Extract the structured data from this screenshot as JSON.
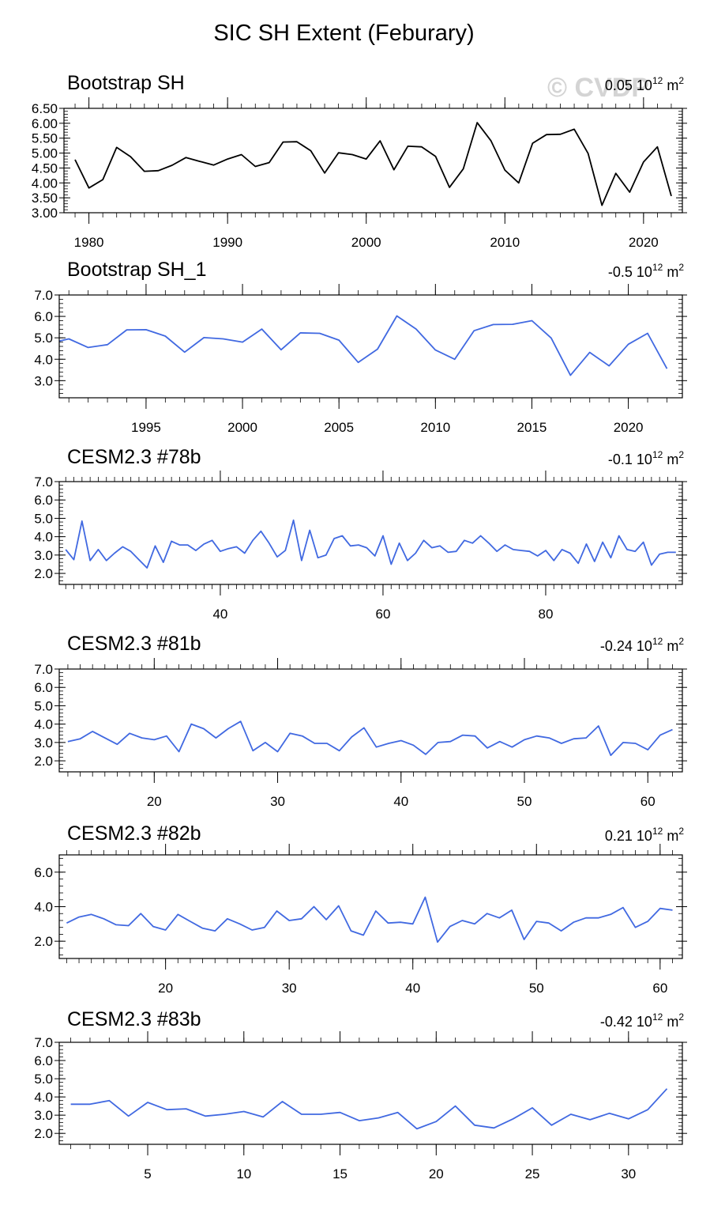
{
  "page": {
    "title": "SIC SH Extent (Feburary)",
    "watermark": "© CVDP",
    "line_colors": {
      "observed": "#000000",
      "model": "#4169e1"
    }
  },
  "chart_data": [
    {
      "type": "line",
      "title": "Bootstrap SH",
      "trend_value": "0.05",
      "trend_base": "10",
      "trend_exp": "12",
      "trend_unit": "m",
      "trend_unit_exp": "2",
      "color": "#000000",
      "xlim": [
        1978.2,
        2022.8
      ],
      "ylim": [
        3.0,
        6.5
      ],
      "yticks": [
        3.0,
        3.5,
        4.0,
        4.5,
        5.0,
        5.5,
        6.0,
        6.5
      ],
      "ytick_labels": [
        "3.00",
        "3.50",
        "4.00",
        "4.50",
        "5.00",
        "5.50",
        "6.00",
        "6.50"
      ],
      "xticks": [
        1980,
        1990,
        2000,
        2010,
        2020
      ],
      "xtick_labels": [
        "1980",
        "1990",
        "2000",
        "2010",
        "2020"
      ],
      "x": [
        1979,
        1980,
        1981,
        1982,
        1983,
        1984,
        1985,
        1986,
        1987,
        1988,
        1989,
        1990,
        1991,
        1992,
        1993,
        1994,
        1995,
        1996,
        1997,
        1998,
        1999,
        2000,
        2001,
        2002,
        2003,
        2004,
        2005,
        2006,
        2007,
        2008,
        2009,
        2010,
        2011,
        2012,
        2013,
        2014,
        2015,
        2016,
        2017,
        2018,
        2019,
        2020,
        2021,
        2022
      ],
      "y": [
        4.78,
        3.83,
        4.11,
        5.19,
        4.88,
        4.39,
        4.41,
        4.59,
        4.85,
        4.72,
        4.6,
        4.8,
        4.95,
        4.55,
        4.68,
        5.37,
        5.38,
        5.08,
        4.33,
        5.01,
        4.95,
        4.8,
        5.41,
        4.44,
        5.23,
        5.21,
        4.89,
        3.85,
        4.47,
        6.02,
        5.41,
        4.43,
        4.0,
        5.33,
        5.62,
        5.63,
        5.8,
        4.99,
        3.25,
        4.32,
        3.69,
        4.7,
        5.21,
        3.56
      ]
    },
    {
      "type": "line",
      "title": "Bootstrap SH_1",
      "trend_value": "-0.5",
      "trend_base": "10",
      "trend_exp": "12",
      "trend_unit": "m",
      "trend_unit_exp": "2",
      "color": "#4169e1",
      "xlim": [
        1990.5,
        2022.8
      ],
      "ylim": [
        2.2,
        7.0
      ],
      "yticks": [
        3.0,
        4.0,
        5.0,
        6.0,
        7.0
      ],
      "ytick_labels": [
        "3.0",
        "4.0",
        "5.0",
        "6.0",
        "7.0"
      ],
      "xticks": [
        1995,
        2000,
        2005,
        2010,
        2015,
        2020
      ],
      "xtick_labels": [
        "1995",
        "2000",
        "2005",
        "2010",
        "2015",
        "2020"
      ],
      "x": [
        1990.5,
        1991,
        1992,
        1993,
        1994,
        1995,
        1996,
        1997,
        1998,
        1999,
        2000,
        2001,
        2002,
        2003,
        2004,
        2005,
        2006,
        2007,
        2008,
        2009,
        2010,
        2011,
        2012,
        2013,
        2014,
        2015,
        2016,
        2017,
        2018,
        2019,
        2020,
        2021,
        2022
      ],
      "y": [
        4.85,
        4.95,
        4.55,
        4.68,
        5.37,
        5.38,
        5.08,
        4.33,
        5.01,
        4.95,
        4.8,
        5.41,
        4.44,
        5.23,
        5.21,
        4.89,
        3.85,
        4.47,
        6.02,
        5.41,
        4.43,
        4.0,
        5.33,
        5.62,
        5.63,
        5.8,
        4.99,
        3.25,
        4.32,
        3.69,
        4.7,
        5.21,
        3.56
      ]
    },
    {
      "type": "line",
      "title": "CESM2.3 #78b",
      "trend_value": "-0.1",
      "trend_base": "10",
      "trend_exp": "12",
      "trend_unit": "m",
      "trend_unit_exp": "2",
      "color": "#4169e1",
      "xlim": [
        20.2,
        96.8
      ],
      "ylim": [
        1.4,
        7.0
      ],
      "yticks": [
        2.0,
        3.0,
        4.0,
        5.0,
        6.0,
        7.0
      ],
      "ytick_labels": [
        "2.0",
        "3.0",
        "4.0",
        "5.0",
        "6.0",
        "7.0"
      ],
      "xticks": [
        40,
        60,
        80
      ],
      "xtick_labels": [
        "40",
        "60",
        "80"
      ],
      "x": [
        21,
        22,
        23,
        24,
        25,
        26,
        27,
        28,
        29,
        30,
        31,
        32,
        33,
        34,
        35,
        36,
        37,
        38,
        39,
        40,
        41,
        42,
        43,
        44,
        45,
        46,
        47,
        48,
        49,
        50,
        51,
        52,
        53,
        54,
        55,
        56,
        57,
        58,
        59,
        60,
        61,
        62,
        63,
        64,
        65,
        66,
        67,
        68,
        69,
        70,
        71,
        72,
        73,
        74,
        75,
        76,
        77,
        78,
        79,
        80,
        81,
        82,
        83,
        84,
        85,
        86,
        87,
        88,
        89,
        90,
        91,
        92,
        93,
        94,
        95,
        96
      ],
      "y": [
        3.3,
        2.75,
        4.85,
        2.7,
        3.3,
        2.7,
        3.1,
        3.45,
        3.2,
        2.75,
        2.3,
        3.5,
        2.6,
        3.75,
        3.55,
        3.55,
        3.25,
        3.6,
        3.8,
        3.2,
        3.35,
        3.45,
        3.1,
        3.8,
        4.3,
        3.65,
        2.9,
        3.25,
        4.9,
        2.7,
        4.35,
        2.85,
        3.0,
        3.9,
        4.05,
        3.5,
        3.55,
        3.4,
        2.95,
        4.05,
        2.5,
        3.65,
        2.7,
        3.1,
        3.8,
        3.4,
        3.5,
        3.15,
        3.2,
        3.8,
        3.65,
        4.05,
        3.65,
        3.2,
        3.55,
        3.3,
        3.25,
        3.2,
        2.95,
        3.25,
        2.7,
        3.3,
        3.1,
        2.55,
        3.6,
        2.65,
        3.7,
        2.85,
        4.05,
        3.3,
        3.2,
        3.7,
        2.45,
        3.05,
        3.15,
        3.15
      ]
    },
    {
      "type": "line",
      "title": "CESM2.3 #81b",
      "trend_value": "-0.24",
      "trend_base": "10",
      "trend_exp": "12",
      "trend_unit": "m",
      "trend_unit_exp": "2",
      "color": "#4169e1",
      "xlim": [
        12.3,
        62.8
      ],
      "ylim": [
        1.4,
        7.0
      ],
      "yticks": [
        2.0,
        3.0,
        4.0,
        5.0,
        6.0,
        7.0
      ],
      "ytick_labels": [
        "2.0",
        "3.0",
        "4.0",
        "5.0",
        "6.0",
        "7.0"
      ],
      "xticks": [
        20,
        30,
        40,
        50,
        60
      ],
      "xtick_labels": [
        "20",
        "30",
        "40",
        "50",
        "60"
      ],
      "x": [
        13,
        14,
        15,
        16,
        17,
        18,
        19,
        20,
        21,
        22,
        23,
        24,
        25,
        26,
        27,
        28,
        29,
        30,
        31,
        32,
        33,
        34,
        35,
        36,
        37,
        38,
        39,
        40,
        41,
        42,
        43,
        44,
        45,
        46,
        47,
        48,
        49,
        50,
        51,
        52,
        53,
        54,
        55,
        56,
        57,
        58,
        59,
        60,
        61,
        62
      ],
      "y": [
        3.05,
        3.2,
        3.6,
        3.25,
        2.9,
        3.5,
        3.25,
        3.15,
        3.35,
        2.5,
        4.0,
        3.75,
        3.25,
        3.75,
        4.15,
        2.55,
        3.0,
        2.5,
        3.5,
        3.35,
        2.95,
        2.95,
        2.55,
        3.3,
        3.8,
        2.75,
        2.95,
        3.1,
        2.85,
        2.35,
        3.0,
        3.05,
        3.4,
        3.35,
        2.7,
        3.05,
        2.75,
        3.15,
        3.35,
        3.25,
        2.95,
        3.2,
        3.25,
        3.9,
        2.3,
        3.0,
        2.95,
        2.6,
        3.4,
        3.7
      ]
    },
    {
      "type": "line",
      "title": "CESM2.3 #82b",
      "trend_value": "0.21",
      "trend_base": "10",
      "trend_exp": "12",
      "trend_unit": "m",
      "trend_unit_exp": "2",
      "color": "#4169e1",
      "xlim": [
        11.4,
        61.8
      ],
      "ylim": [
        1.0,
        7.0
      ],
      "yticks": [
        2.0,
        4.0,
        6.0
      ],
      "ytick_labels": [
        "2.0",
        "4.0",
        "6.0"
      ],
      "xticks": [
        20,
        30,
        40,
        50,
        60
      ],
      "xtick_labels": [
        "20",
        "30",
        "40",
        "50",
        "60"
      ],
      "x": [
        12,
        13,
        14,
        15,
        16,
        17,
        18,
        19,
        20,
        21,
        22,
        23,
        24,
        25,
        26,
        27,
        28,
        29,
        30,
        31,
        32,
        33,
        34,
        35,
        36,
        37,
        38,
        39,
        40,
        41,
        42,
        43,
        44,
        45,
        46,
        47,
        48,
        49,
        50,
        51,
        52,
        53,
        54,
        55,
        56,
        57,
        58,
        59,
        60,
        61
      ],
      "y": [
        3.05,
        3.4,
        3.55,
        3.3,
        2.95,
        2.9,
        3.6,
        2.85,
        2.65,
        3.55,
        3.15,
        2.75,
        2.6,
        3.3,
        3.0,
        2.65,
        2.8,
        3.75,
        3.2,
        3.3,
        4.0,
        3.25,
        4.05,
        2.6,
        2.35,
        3.75,
        3.05,
        3.1,
        3.0,
        4.55,
        1.95,
        2.85,
        3.2,
        3.0,
        3.6,
        3.35,
        3.8,
        2.1,
        3.15,
        3.05,
        2.6,
        3.1,
        3.35,
        3.35,
        3.55,
        3.95,
        2.8,
        3.15,
        3.9,
        3.8
      ]
    },
    {
      "type": "line",
      "title": "CESM2.3 #83b",
      "trend_value": "-0.42",
      "trend_base": "10",
      "trend_exp": "12",
      "trend_unit": "m",
      "trend_unit_exp": "2",
      "color": "#4169e1",
      "xlim": [
        0.4,
        32.8
      ],
      "ylim": [
        1.4,
        7.0
      ],
      "yticks": [
        2.0,
        3.0,
        4.0,
        5.0,
        6.0,
        7.0
      ],
      "ytick_labels": [
        "2.0",
        "3.0",
        "4.0",
        "5.0",
        "6.0",
        "7.0"
      ],
      "xticks": [
        5,
        10,
        15,
        20,
        25,
        30
      ],
      "xtick_labels": [
        "5",
        "10",
        "15",
        "20",
        "25",
        "30"
      ],
      "x": [
        1,
        2,
        3,
        4,
        5,
        6,
        7,
        8,
        9,
        10,
        11,
        12,
        13,
        14,
        15,
        16,
        17,
        18,
        19,
        20,
        21,
        22,
        23,
        24,
        25,
        26,
        27,
        28,
        29,
        30,
        31,
        32
      ],
      "y": [
        3.6,
        3.6,
        3.8,
        2.95,
        3.7,
        3.3,
        3.35,
        2.95,
        3.05,
        3.2,
        2.9,
        3.75,
        3.05,
        3.05,
        3.15,
        2.7,
        2.85,
        3.15,
        2.25,
        2.65,
        3.5,
        2.45,
        2.3,
        2.8,
        3.4,
        2.45,
        3.05,
        2.75,
        3.1,
        2.8,
        3.3,
        4.45
      ]
    }
  ]
}
